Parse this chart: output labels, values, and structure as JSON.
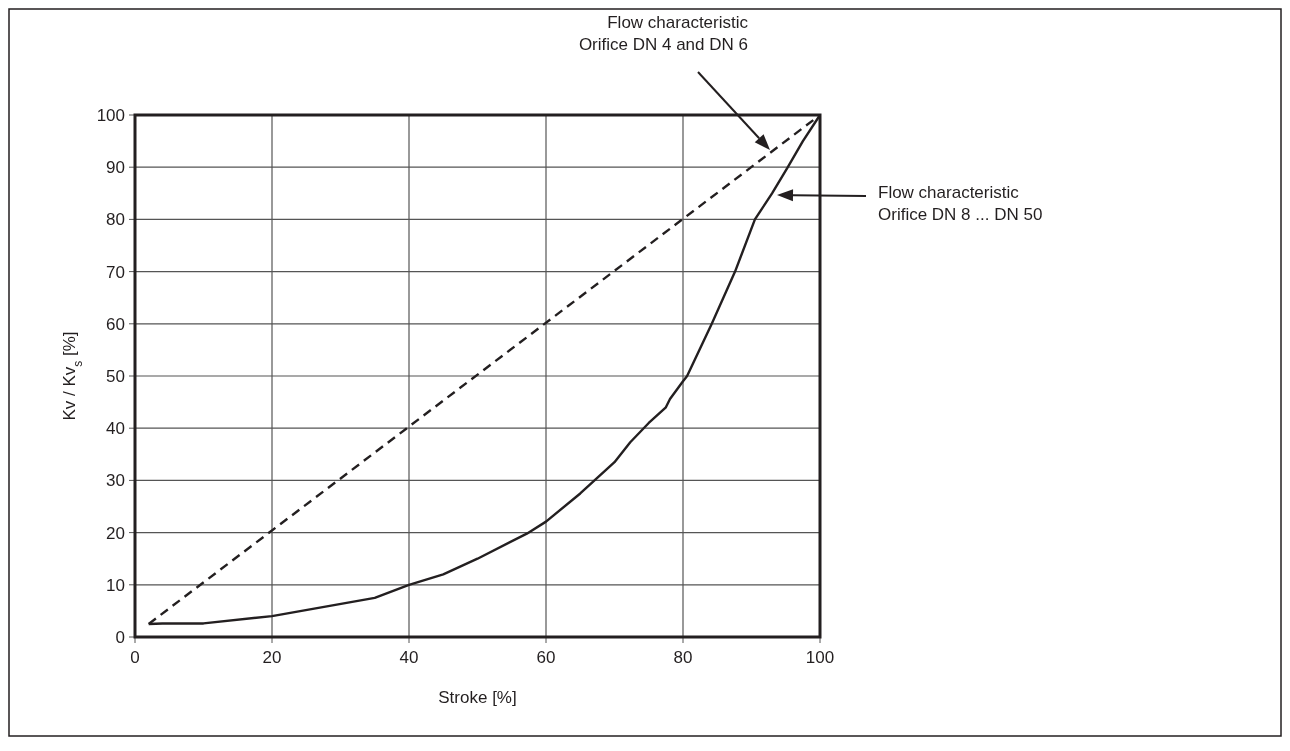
{
  "chart_data": {
    "type": "line",
    "xlabel": "Stroke [%]",
    "ylabel": "Kv / Kv$_{s}$ [%]",
    "xlim": [
      0,
      100
    ],
    "xticks": [
      0,
      20,
      40,
      60,
      80,
      100
    ],
    "ylim": [
      0,
      100
    ],
    "yticks": [
      0,
      10,
      20,
      30,
      40,
      50,
      60,
      70,
      80,
      90,
      100
    ],
    "grid": true,
    "series": [
      {
        "color": "#231f20",
        "line_style": "dashed",
        "x": [
          2,
          100
        ],
        "values": [
          2.5,
          100
        ]
      },
      {
        "color": "#231f20",
        "line_style": "solid",
        "x": [
          2,
          4,
          10,
          20,
          35,
          40,
          45,
          50,
          57.2,
          60,
          65,
          70,
          72.3,
          75,
          77.5,
          78.1,
          80,
          80.6,
          84.2,
          87.6,
          90.5,
          93,
          95.3,
          97.5,
          100
        ],
        "values": [
          2.5,
          2.6,
          2.6,
          4,
          7.5,
          10,
          12,
          15,
          19.8,
          22.1,
          27.5,
          33.5,
          37.3,
          41,
          44,
          45.6,
          49,
          50,
          60,
          70,
          80,
          85,
          90,
          95,
          100
        ]
      }
    ],
    "annotations": [
      "Flow characteristic\nOrifice DN 4 and DN 6",
      "Flow characteristic\nOrifice DN 8 ... DN 50"
    ]
  }
}
